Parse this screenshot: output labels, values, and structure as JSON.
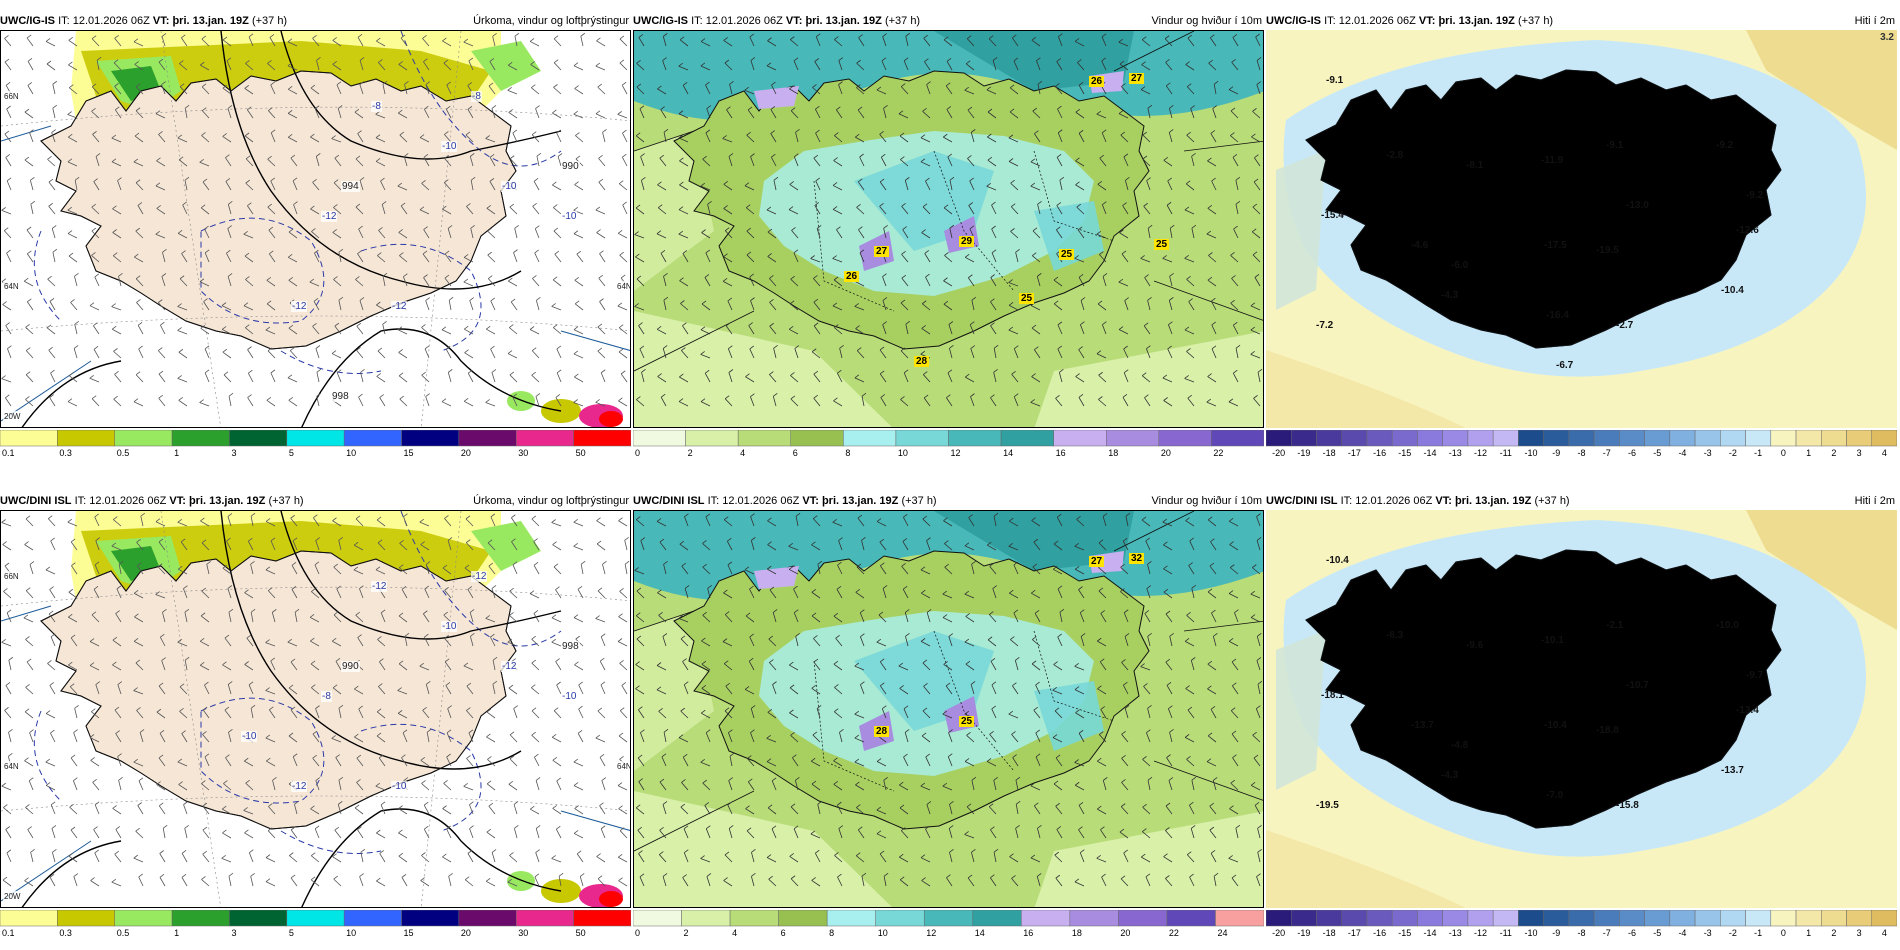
{
  "rows": [
    {
      "model": "UWC/IG-IS",
      "it_label": "IT:",
      "it_value": "12.01.2026 06Z",
      "vt_label": "VT:",
      "vt_value": "þri. 13.jan. 19Z",
      "lead": "(+37 h)",
      "precip": {
        "param": "Úrkoma, vindur og loftþrýstingur",
        "isobars": [
          "994",
          "990",
          "998"
        ],
        "temp_contours": [
          "-8",
          "-10",
          "-12",
          "-10",
          "-8",
          "-10",
          "-12",
          "-12"
        ],
        "lat_labels": [
          "66N",
          "64N",
          "64N",
          "20W"
        ]
      },
      "wind": {
        "param": "Vindur og hviður í 10m",
        "gust_labels": [
          "26",
          "27",
          "27",
          "29",
          "26",
          "25",
          "25",
          "25",
          "28"
        ]
      },
      "temp": {
        "param": "Hiti í 2m",
        "corner_value": "3.2",
        "temp_labels": [
          "-9.1",
          "-2.8",
          "-8.1",
          "-11.9",
          "-9.1",
          "-9.2",
          "-13.0",
          "-9.2",
          "-15.4",
          "-4.6",
          "-17.5",
          "-19.5",
          "-12.6",
          "-6.0",
          "-4.3",
          "-10.4",
          "-7.2",
          "-16.4",
          "-2.7",
          "-6.7"
        ]
      }
    },
    {
      "model": "UWC/DINI ISL",
      "it_label": "IT:",
      "it_value": "12.01.2026 06Z",
      "vt_label": "VT:",
      "vt_value": "þri. 13.jan. 19Z",
      "lead": "(+37 h)",
      "precip": {
        "param": "Úrkoma, vindur og loftþrýstingur",
        "isobars": [
          "990",
          "998"
        ],
        "temp_contours": [
          "-12",
          "-10",
          "-8",
          "-12",
          "-12",
          "-10",
          "-12",
          "-10",
          "-10"
        ],
        "lat_labels": [
          "66N",
          "64N",
          "64N",
          "20W"
        ]
      },
      "wind": {
        "param": "Vindur og hviður í 10m",
        "gust_labels": [
          "27",
          "32",
          "28",
          "25"
        ]
      },
      "temp": {
        "param": "Hiti í 2m",
        "corner_value": "",
        "temp_labels": [
          "-10.4",
          "-6.3",
          "-9.6",
          "-10.1",
          "-2.1",
          "-10.0",
          "-10.7",
          "-9.7",
          "-18.1",
          "-13.7",
          "-10.4",
          "-18.8",
          "-13.4",
          "-4.8",
          "-4.3",
          "-13.7",
          "-19.5",
          "-7.0",
          "-15.8"
        ]
      }
    }
  ],
  "colorbars": {
    "precip": {
      "ticks": [
        "0.1",
        "0.3",
        "0.5",
        "1",
        "3",
        "5",
        "10",
        "15",
        "20",
        "30",
        "50"
      ],
      "colors": [
        "#fdfd96",
        "#c8c800",
        "#98e860",
        "#2ca02c",
        "#006432",
        "#00e5e5",
        "#3264ff",
        "#000080",
        "#6a0a6a",
        "#e8288c",
        "#ff0000"
      ]
    },
    "wind_top": {
      "ticks": [
        "0",
        "2",
        "4",
        "6",
        "8",
        "10",
        "12",
        "14",
        "16",
        "18",
        "20",
        "22"
      ],
      "colors": [
        "#f0fae0",
        "#d8f0a8",
        "#b8dc78",
        "#98c050",
        "#a8f0f0",
        "#78d8d8",
        "#48b8b8",
        "#30a0a0",
        "#c8b0f0",
        "#a88ce0",
        "#8868d0",
        "#6048b8"
      ]
    },
    "wind_bottom": {
      "ticks": [
        "0",
        "2",
        "4",
        "6",
        "8",
        "10",
        "12",
        "14",
        "16",
        "18",
        "20",
        "22",
        "24"
      ],
      "colors": [
        "#f0fae0",
        "#d8f0a8",
        "#b8dc78",
        "#98c050",
        "#a8f0f0",
        "#78d8d8",
        "#48b8b8",
        "#30a0a0",
        "#c8b0f0",
        "#a88ce0",
        "#8868d0",
        "#6048b8",
        "#f8a0a0"
      ]
    },
    "temp": {
      "ticks": [
        "-20",
        "-19",
        "-18",
        "-17",
        "-16",
        "-15",
        "-14",
        "-13",
        "-12",
        "-11",
        "-10",
        "-9",
        "-8",
        "-7",
        "-6",
        "-5",
        "-4",
        "-3",
        "-2",
        "-1",
        "0",
        "1",
        "2",
        "3",
        "4"
      ],
      "colors": [
        "#2a1a7a",
        "#3a2a8c",
        "#4a3a9e",
        "#5a4aae",
        "#6a5abe",
        "#7a6ace",
        "#8a7ade",
        "#9a8ae6",
        "#b0a0ee",
        "#c4b8f4",
        "#1c4c8c",
        "#2a5c9c",
        "#3a6cac",
        "#4a7cbc",
        "#5a8cc8",
        "#6a9cd4",
        "#80b0e0",
        "#98c4ea",
        "#b0d8f2",
        "#c8e8f8",
        "#f8f4c0",
        "#f4e8a8",
        "#eedc90",
        "#e8cc78",
        "#e0bc60"
      ]
    }
  }
}
